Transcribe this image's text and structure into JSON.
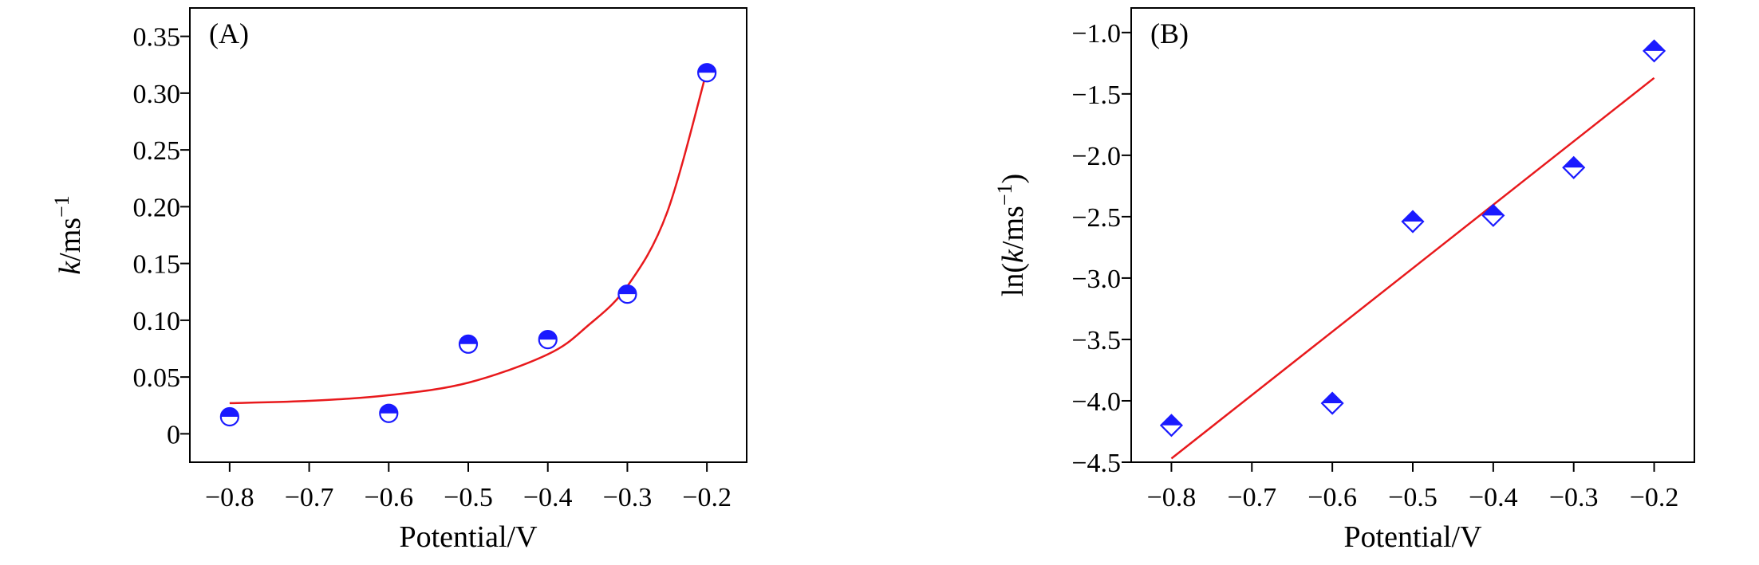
{
  "chart_data": [
    {
      "type": "scatter",
      "panel_label": "(A)",
      "xlabel": "Potential/V",
      "ylabel": {
        "italic": "k",
        "rest": "/ms",
        "sup": "−1"
      },
      "xlim": [
        -0.85,
        -0.15
      ],
      "ylim": [
        -0.025,
        0.375
      ],
      "xticks": [
        -0.8,
        -0.7,
        -0.6,
        -0.5,
        -0.4,
        -0.3,
        -0.2
      ],
      "xtick_labels": [
        "−0.8",
        "−0.7",
        "−0.6",
        "−0.5",
        "−0.4",
        "−0.3",
        "−0.2"
      ],
      "yticks": [
        0,
        0.05,
        0.1,
        0.15,
        0.2,
        0.25,
        0.3,
        0.35
      ],
      "ytick_labels": [
        "0",
        "0.05",
        "0.10",
        "0.15",
        "0.20",
        "0.25",
        "0.30",
        "0.35"
      ],
      "marker": "half-filled-circle",
      "marker_color": "#1a1aff",
      "points": [
        {
          "x": -0.8,
          "y": 0.015
        },
        {
          "x": -0.6,
          "y": 0.018
        },
        {
          "x": -0.5,
          "y": 0.079
        },
        {
          "x": -0.4,
          "y": 0.083
        },
        {
          "x": -0.3,
          "y": 0.123
        },
        {
          "x": -0.2,
          "y": 0.318
        }
      ],
      "fit": {
        "kind": "exponential",
        "color": "#e8191c",
        "x_range": [
          -0.8,
          -0.2
        ],
        "curve": [
          {
            "x": -0.8,
            "y": 0.027
          },
          {
            "x": -0.7,
            "y": 0.029
          },
          {
            "x": -0.6,
            "y": 0.034
          },
          {
            "x": -0.5,
            "y": 0.045
          },
          {
            "x": -0.4,
            "y": 0.07
          },
          {
            "x": -0.35,
            "y": 0.095
          },
          {
            "x": -0.3,
            "y": 0.13
          },
          {
            "x": -0.25,
            "y": 0.195
          },
          {
            "x": -0.2,
            "y": 0.32
          }
        ]
      }
    },
    {
      "type": "scatter",
      "panel_label": "(B)",
      "xlabel": "Potential/V",
      "ylabel": {
        "pre": "ln(",
        "italic": "k",
        "rest": "/ms",
        "sup": "−1",
        "post": ")"
      },
      "xlim": [
        -0.85,
        -0.15
      ],
      "ylim": [
        -4.5,
        -0.8
      ],
      "xticks": [
        -0.8,
        -0.7,
        -0.6,
        -0.5,
        -0.4,
        -0.3,
        -0.2
      ],
      "xtick_labels": [
        "−0.8",
        "−0.7",
        "−0.6",
        "−0.5",
        "−0.4",
        "−0.3",
        "−0.2"
      ],
      "yticks": [
        -4.5,
        -4.0,
        -3.5,
        -3.0,
        -2.5,
        -2.0,
        -1.5,
        -1.0
      ],
      "ytick_labels": [
        "−4.5",
        "−4.0",
        "−3.5",
        "−3.0",
        "−2.5",
        "−2.0",
        "−1.5",
        "−1.0"
      ],
      "marker": "half-filled-diamond",
      "marker_color": "#1a1aff",
      "points": [
        {
          "x": -0.8,
          "y": -4.2
        },
        {
          "x": -0.6,
          "y": -4.02
        },
        {
          "x": -0.5,
          "y": -2.54
        },
        {
          "x": -0.4,
          "y": -2.49
        },
        {
          "x": -0.3,
          "y": -2.1
        },
        {
          "x": -0.2,
          "y": -1.15
        }
      ],
      "fit": {
        "kind": "linear",
        "color": "#e8191c",
        "x_range": [
          -0.8,
          -0.2
        ],
        "line": [
          {
            "x": -0.8,
            "y": -4.47
          },
          {
            "x": -0.2,
            "y": -1.37
          }
        ]
      }
    }
  ]
}
